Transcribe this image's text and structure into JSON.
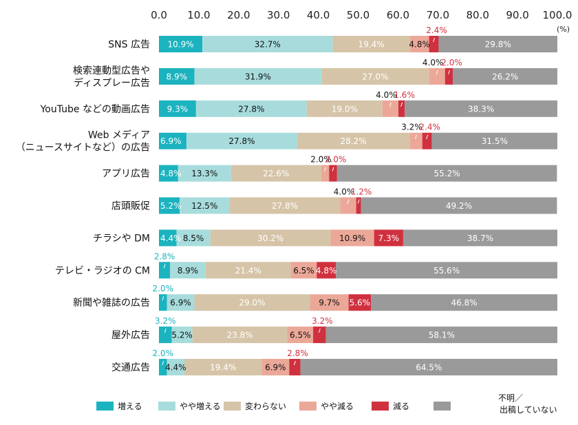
{
  "chart_data": {
    "type": "bar",
    "orientation": "horizontal",
    "stacked": true,
    "title": "",
    "unit_label": "(%)",
    "xlim": [
      0,
      100
    ],
    "x_ticks": [
      "0.0",
      "10.0",
      "20.0",
      "30.0",
      "40.0",
      "50.0",
      "60.0",
      "70.0",
      "80.0",
      "90.0",
      "100.0"
    ],
    "categories": [
      [
        "SNS 広告"
      ],
      [
        "検索連動型広告や",
        "ディスプレー広告"
      ],
      [
        "YouTube などの動画広告"
      ],
      [
        "Web メディア",
        "（ニュースサイトなど）の広告"
      ],
      [
        "アプリ広告"
      ],
      [
        "店頭販促"
      ],
      [
        "チラシや DM"
      ],
      [
        "テレビ・ラジオの CM"
      ],
      [
        "新聞や雑誌の広告"
      ],
      [
        "屋外広告"
      ],
      [
        "交通広告"
      ]
    ],
    "series": [
      {
        "name": "増える",
        "color": "#1bb3bf",
        "label_color": "#ffffff",
        "values": [
          10.9,
          8.9,
          9.3,
          6.9,
          4.8,
          5.2,
          4.4,
          2.8,
          2.0,
          3.2,
          2.0
        ]
      },
      {
        "name": "やや増える",
        "color": "#a8dcdc",
        "label_color": "#111111",
        "values": [
          32.7,
          31.9,
          27.8,
          27.8,
          13.3,
          12.5,
          8.5,
          8.9,
          6.9,
          5.2,
          4.4
        ]
      },
      {
        "name": "変わらない",
        "color": "#d6c4a8",
        "label_color": "#ffffff",
        "values": [
          19.4,
          27.0,
          19.0,
          28.2,
          22.6,
          27.8,
          30.2,
          21.4,
          29.0,
          23.8,
          19.4
        ]
      },
      {
        "name": "やや減る",
        "color": "#eba898",
        "label_color": "#111111",
        "values": [
          4.8,
          4.0,
          4.0,
          3.2,
          2.0,
          4.0,
          10.9,
          6.5,
          9.7,
          6.5,
          6.9
        ]
      },
      {
        "name": "減る",
        "color": "#d0313f",
        "label_color": "#ffffff",
        "values": [
          2.4,
          2.0,
          1.6,
          2.4,
          2.0,
          1.2,
          7.3,
          4.8,
          5.6,
          3.2,
          2.8
        ]
      },
      {
        "name": [
          "不明／",
          "出稿していない"
        ],
        "color": "#9a9a9a",
        "label_color": "#ffffff",
        "values": [
          29.8,
          26.2,
          38.3,
          31.5,
          55.2,
          49.2,
          38.7,
          55.6,
          46.8,
          58.1,
          64.5
        ]
      }
    ],
    "value_labels": [
      [
        "10.9%",
        "32.7%",
        "19.4%",
        "4.8%",
        "2.4%",
        "29.8%"
      ],
      [
        "8.9%",
        "31.9%",
        "27.0%",
        "4.0%",
        "2.0%",
        "26.2%"
      ],
      [
        "9.3%",
        "27.8%",
        "19.0%",
        "4.0%",
        "1.6%",
        "38.3%"
      ],
      [
        "6.9%",
        "27.8%",
        "28.2%",
        "3.2%",
        "2.4%",
        "31.5%"
      ],
      [
        "4.8%",
        "13.3%",
        "22.6%",
        "2.0%",
        "2.0%",
        "55.2%"
      ],
      [
        "5.2%",
        "12.5%",
        "27.8%",
        "4.0%",
        "1.2%",
        "49.2%"
      ],
      [
        "4.4%",
        "8.5%",
        "30.2%",
        "10.9%",
        "7.3%",
        "38.7%"
      ],
      [
        "2.8%",
        "8.9%",
        "21.4%",
        "6.5%",
        "4.8%",
        "55.6%"
      ],
      [
        "2.0%",
        "6.9%",
        "29.0%",
        "9.7%",
        "5.6%",
        "46.8%"
      ],
      [
        "3.2%",
        "5.2%",
        "23.8%",
        "6.5%",
        "3.2%",
        "58.1%"
      ],
      [
        "2.0%",
        "4.4%",
        "19.4%",
        "6.9%",
        "2.8%",
        "64.5%"
      ]
    ],
    "legend_position": "bottom",
    "grid": false
  }
}
